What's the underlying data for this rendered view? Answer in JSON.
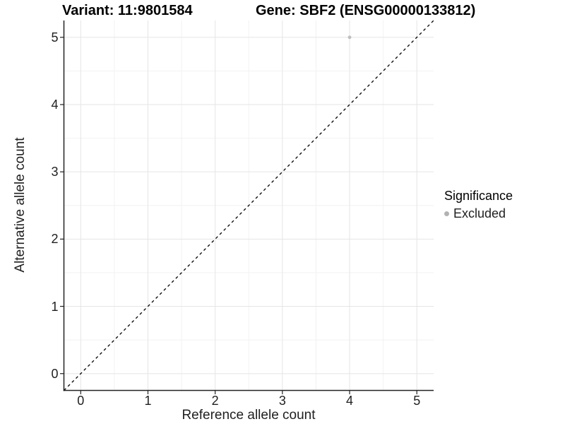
{
  "header": {
    "variant_title": "Variant: 11:9801584",
    "gene_title": "Gene: SBF2 (ENSG00000133812)"
  },
  "chart_data": {
    "type": "scatter",
    "title_left": "Variant: 11:9801584",
    "title_right": "Gene: SBF2 (ENSG00000133812)",
    "xlabel": "Reference allele count",
    "ylabel": "Alternative allele count",
    "xlim": [
      -0.25,
      5.25
    ],
    "ylim": [
      -0.25,
      5.25
    ],
    "xticks": [
      0,
      1,
      2,
      3,
      4,
      5
    ],
    "yticks": [
      0,
      1,
      2,
      3,
      4,
      5
    ],
    "minor_ticks": [
      0.5,
      1.5,
      2.5,
      3.5,
      4.5
    ],
    "grid": "major and minor, light gray on white",
    "identity_line": {
      "style": "dashed",
      "color": "#000000",
      "from": [
        -0.25,
        -0.25
      ],
      "to": [
        5.25,
        5.25
      ]
    },
    "series": [
      {
        "name": "Excluded",
        "color": "#bebebe",
        "points": [
          {
            "x": 4,
            "y": 5
          }
        ]
      }
    ],
    "legend": {
      "title": "Significance",
      "position": "right",
      "entries": [
        {
          "label": "Excluded",
          "color": "#b2b2b2"
        }
      ]
    }
  },
  "colors": {
    "background": "#ffffff",
    "major_grid": "#e5e5e5",
    "minor_grid": "#f2f2f2",
    "axis": "#222222",
    "tick_text": "#1f1f1f",
    "title_text": "#000000"
  }
}
